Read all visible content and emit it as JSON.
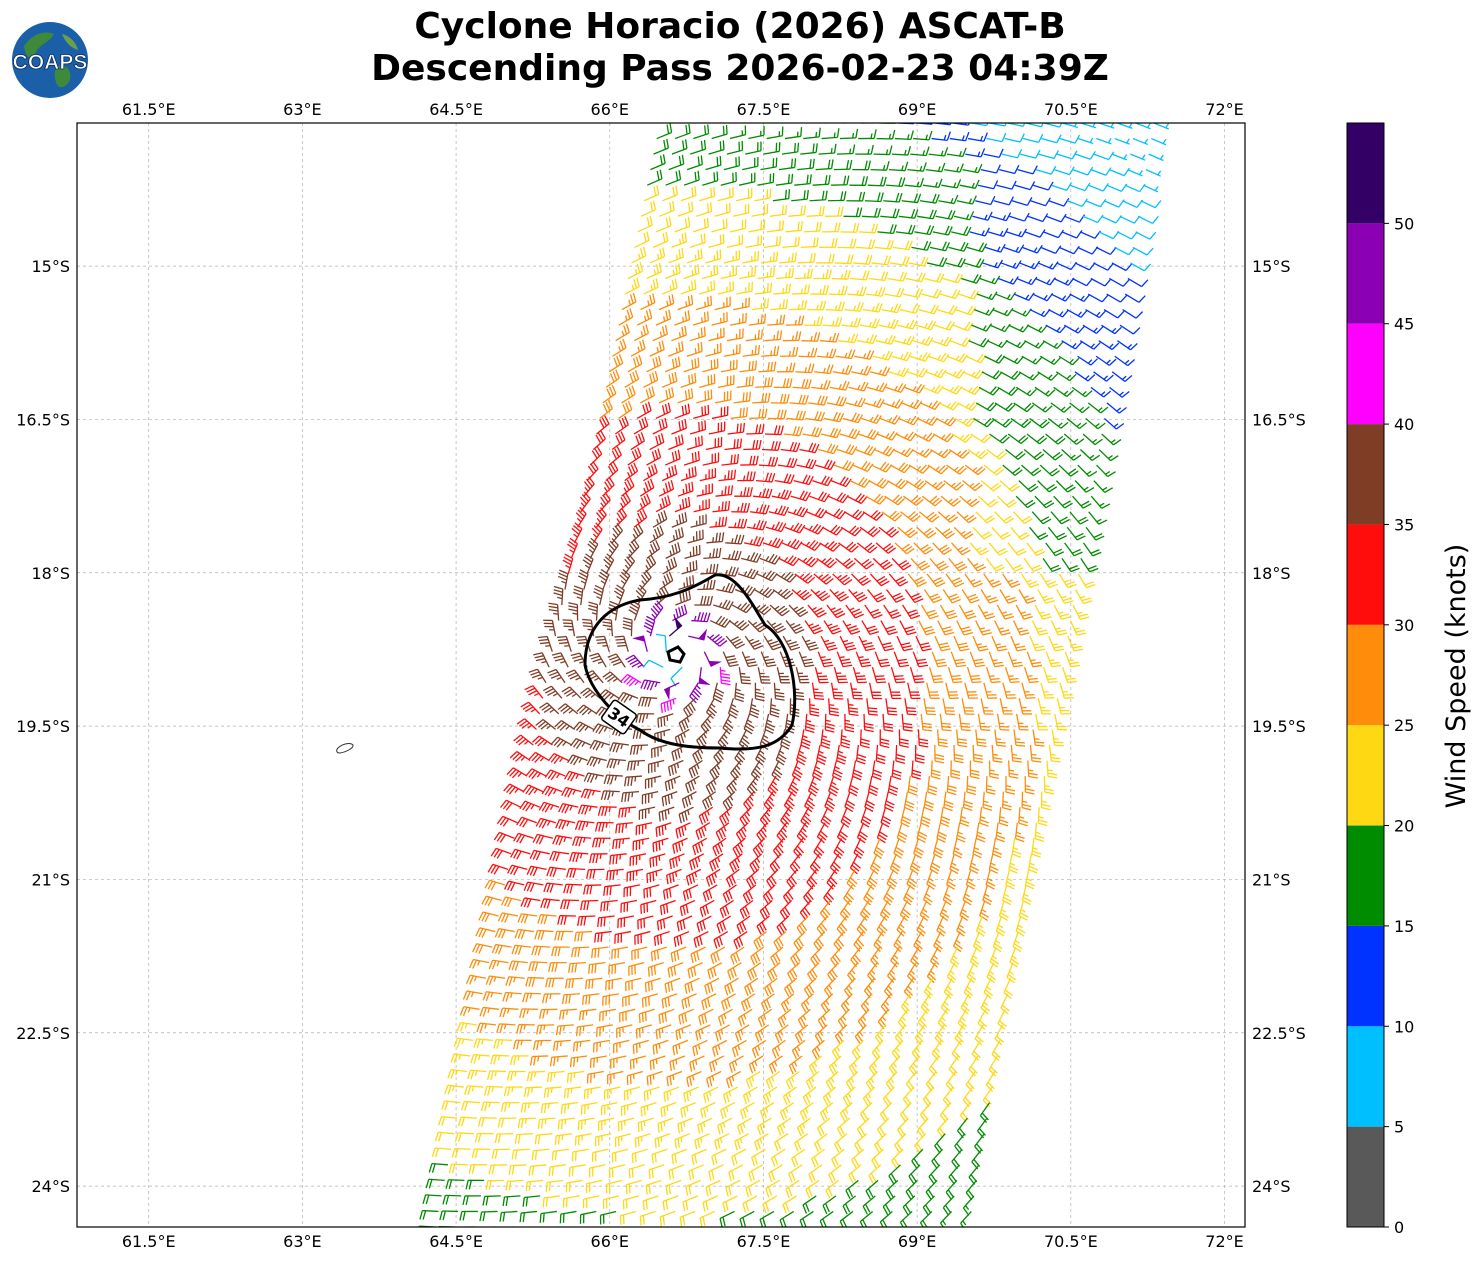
{
  "logo": {
    "text": "COAPS"
  },
  "chart_data": {
    "type": "wind-barb map",
    "title_line1": "Cyclone Horacio (2026) ASCAT-B",
    "title_line2": "Descending Pass 2026-02-23 04:39Z",
    "lon_ticks": [
      "61.5°E",
      "63°E",
      "64.5°E",
      "66°E",
      "67.5°E",
      "69°E",
      "70.5°E",
      "72°E"
    ],
    "lon_values": [
      61.5,
      63,
      64.5,
      66,
      67.5,
      69,
      70.5,
      72
    ],
    "lat_ticks": [
      "15°S",
      "16.5°S",
      "18°S",
      "19.5°S",
      "21°S",
      "22.5°S",
      "24°S"
    ],
    "lat_values": [
      -15,
      -16.5,
      -18,
      -19.5,
      -21,
      -22.5,
      -24
    ],
    "xlim": [
      60.8,
      72.2
    ],
    "ylim": [
      -24.4,
      -13.6
    ],
    "grid": true,
    "center": {
      "lon": 66.65,
      "lat": -18.8
    },
    "contour_label": "34",
    "colorbar": {
      "label": "Wind Speed (knots)",
      "ticks": [
        "0",
        "5",
        "10",
        "15",
        "20",
        "25",
        "30",
        "35",
        "40",
        "45",
        "50"
      ],
      "bins": [
        {
          "min": 0,
          "max": 5,
          "color": "#595959"
        },
        {
          "min": 5,
          "max": 10,
          "color": "#00bfff"
        },
        {
          "min": 10,
          "max": 15,
          "color": "#0033ff"
        },
        {
          "min": 15,
          "max": 20,
          "color": "#008c00"
        },
        {
          "min": 20,
          "max": 25,
          "color": "#ffd814"
        },
        {
          "min": 25,
          "max": 30,
          "color": "#ff8c0a"
        },
        {
          "min": 30,
          "max": 35,
          "color": "#ff0d0d"
        },
        {
          "min": 35,
          "max": 40,
          "color": "#803d26"
        },
        {
          "min": 40,
          "max": 45,
          "color": "#ff00ff"
        },
        {
          "min": 45,
          "max": 50,
          "color": "#8c00b3"
        },
        {
          "min": 50,
          "max": 55,
          "color": "#330066"
        }
      ]
    },
    "swath": {
      "top": [
        [
          66.4,
          -13.6
        ],
        [
          71.4,
          -13.6
        ]
      ],
      "bottom": [
        [
          64.2,
          -24.4
        ],
        [
          69.6,
          -24.4
        ]
      ]
    },
    "wind_speed_zones_knots": [
      {
        "range": "45-55",
        "region": "eyewall near center"
      },
      {
        "range": "35-40",
        "region": "inside 34-kt contour"
      },
      {
        "range": "30-35",
        "region": "ring around 34-kt contour"
      },
      {
        "range": "25-30",
        "region": "outer ring"
      },
      {
        "range": "20-25",
        "region": "broad band, south and east"
      },
      {
        "range": "15-20",
        "region": "far south and far east edge"
      },
      {
        "range": "10-15",
        "region": "north-east of swath"
      },
      {
        "range": "5-10",
        "region": "northern edge of swath"
      }
    ]
  }
}
